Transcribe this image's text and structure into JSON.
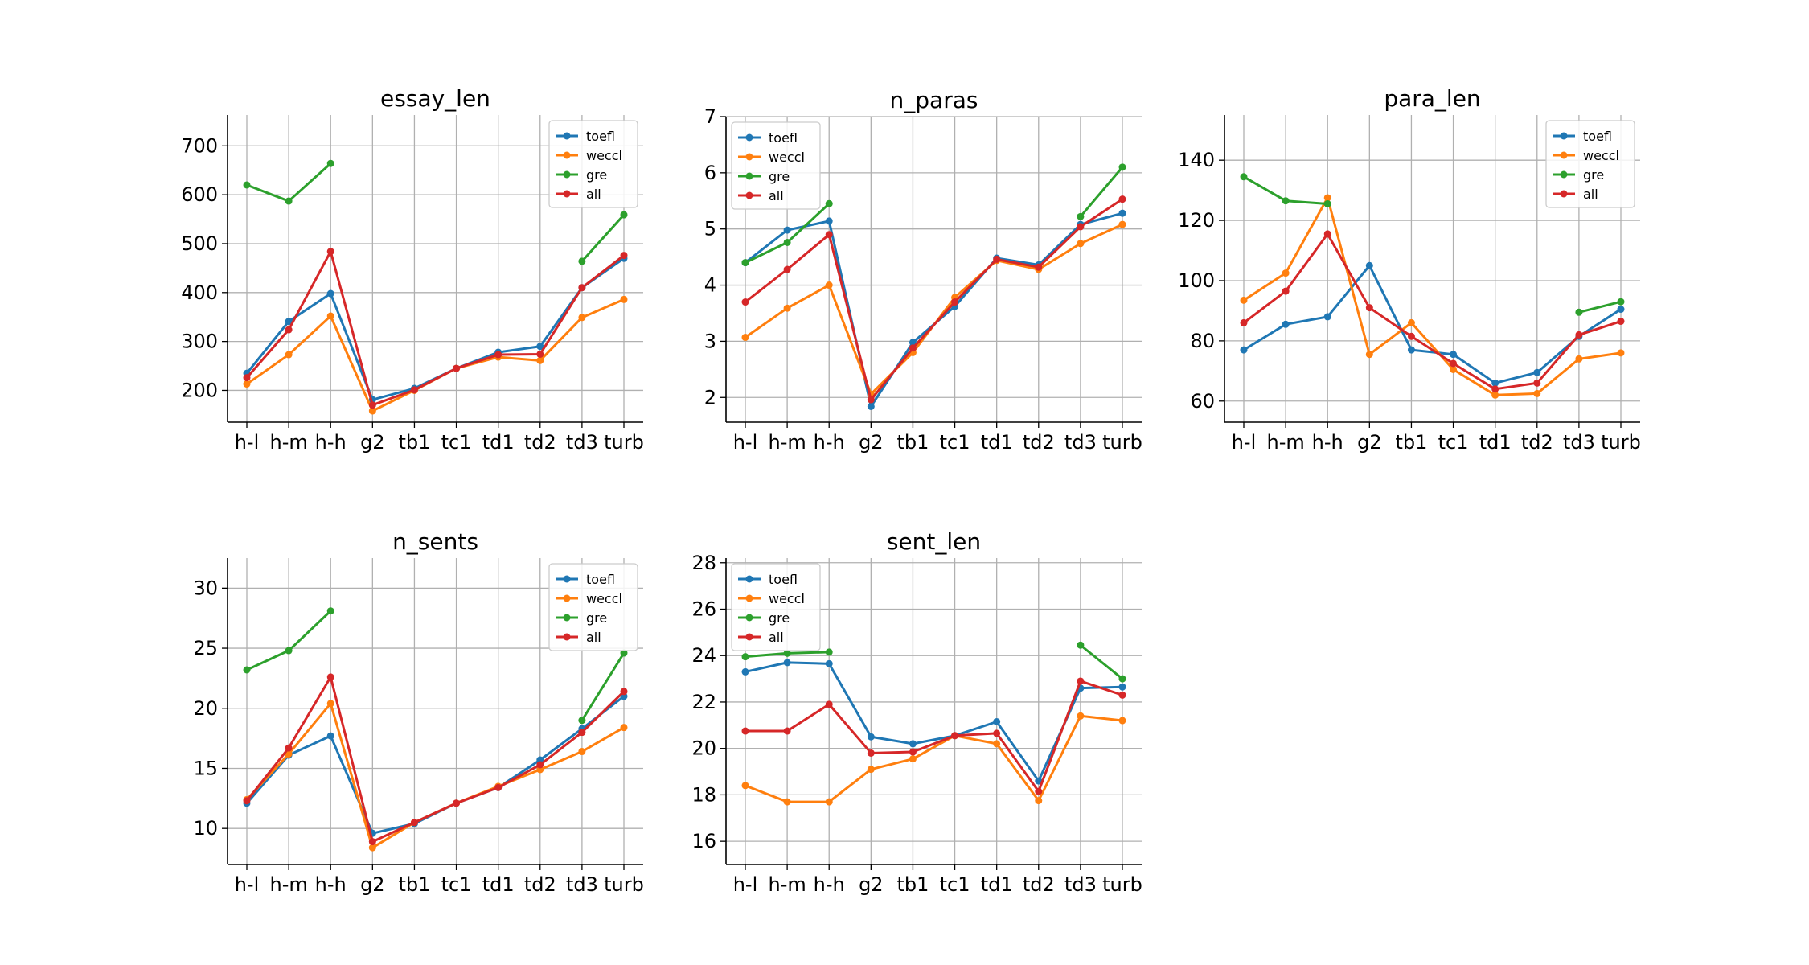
{
  "chart_data": [
    {
      "type": "line",
      "title": "essay_len",
      "categories": [
        "h-l",
        "h-m",
        "h-h",
        "g2",
        "tb1",
        "tc1",
        "td1",
        "td2",
        "td3",
        "turb"
      ],
      "yticks": [
        200,
        300,
        400,
        500,
        600,
        700
      ],
      "ylim": [
        135,
        763
      ],
      "legend": "top-right",
      "grid": true,
      "series": [
        {
          "name": "toefl",
          "color": "#1f77b4",
          "values": [
            235,
            341,
            398,
            181,
            204,
            245,
            278,
            290,
            410,
            470
          ]
        },
        {
          "name": "weccl",
          "color": "#ff7f0e",
          "values": [
            213,
            273,
            352,
            158,
            200,
            245,
            268,
            261,
            349,
            386
          ]
        },
        {
          "name": "gre",
          "color": "#2ca02c",
          "values": [
            620,
            587,
            664,
            null,
            null,
            null,
            null,
            null,
            464,
            559
          ]
        },
        {
          "name": "all",
          "color": "#d62728",
          "values": [
            226,
            324,
            484,
            170,
            201,
            245,
            273,
            274,
            410,
            476
          ]
        }
      ]
    },
    {
      "type": "line",
      "title": "n_paras",
      "categories": [
        "h-l",
        "h-m",
        "h-h",
        "g2",
        "tb1",
        "tc1",
        "td1",
        "td2",
        "td3",
        "turb"
      ],
      "yticks": [
        2,
        3,
        4,
        5,
        6,
        7
      ],
      "ylim": [
        1.56,
        7.0
      ],
      "legend": "top-left",
      "grid": true,
      "series": [
        {
          "name": "toefl",
          "color": "#1f77b4",
          "values": [
            4.4,
            4.98,
            5.14,
            1.84,
            2.98,
            3.62,
            4.48,
            4.36,
            5.08,
            5.28
          ]
        },
        {
          "name": "weccl",
          "color": "#ff7f0e",
          "values": [
            3.07,
            3.59,
            4.0,
            2.06,
            2.8,
            3.78,
            4.44,
            4.28,
            4.74,
            5.08
          ]
        },
        {
          "name": "gre",
          "color": "#2ca02c",
          "values": [
            4.4,
            4.76,
            5.45,
            null,
            null,
            null,
            null,
            null,
            5.22,
            6.1
          ]
        },
        {
          "name": "all",
          "color": "#d62728",
          "values": [
            3.7,
            4.28,
            4.9,
            1.96,
            2.88,
            3.7,
            4.46,
            4.32,
            5.04,
            5.53
          ]
        }
      ]
    },
    {
      "type": "line",
      "title": "para_len",
      "categories": [
        "h-l",
        "h-m",
        "h-h",
        "g2",
        "tb1",
        "tc1",
        "td1",
        "td2",
        "td3",
        "turb"
      ],
      "yticks": [
        60,
        80,
        100,
        120,
        140
      ],
      "ylim": [
        53,
        155
      ],
      "legend": "top-right",
      "grid": true,
      "series": [
        {
          "name": "toefl",
          "color": "#1f77b4",
          "values": [
            77,
            85.5,
            88,
            105,
            77,
            75.5,
            66,
            69.5,
            81.5,
            90.5
          ]
        },
        {
          "name": "weccl",
          "color": "#ff7f0e",
          "values": [
            93.5,
            102.5,
            127.5,
            75.5,
            86,
            70.5,
            62,
            62.5,
            74,
            76
          ]
        },
        {
          "name": "gre",
          "color": "#2ca02c",
          "values": [
            134.5,
            126.5,
            125.5,
            null,
            null,
            null,
            null,
            null,
            89.5,
            93
          ]
        },
        {
          "name": "all",
          "color": "#d62728",
          "values": [
            86,
            96.5,
            115.5,
            91,
            81.5,
            72.5,
            64,
            66,
            82,
            86.5
          ]
        }
      ]
    },
    {
      "type": "line",
      "title": "n_sents",
      "categories": [
        "h-l",
        "h-m",
        "h-h",
        "g2",
        "tb1",
        "tc1",
        "td1",
        "td2",
        "td3",
        "turb"
      ],
      "yticks": [
        10,
        15,
        20,
        25,
        30
      ],
      "ylim": [
        7.0,
        32.5
      ],
      "legend": "top-right",
      "grid": true,
      "series": [
        {
          "name": "toefl",
          "color": "#1f77b4",
          "values": [
            12.1,
            16.1,
            17.7,
            9.6,
            10.4,
            12.1,
            13.4,
            15.7,
            18.3,
            21.0
          ]
        },
        {
          "name": "weccl",
          "color": "#ff7f0e",
          "values": [
            12.4,
            16.2,
            20.4,
            8.4,
            10.5,
            12.1,
            13.5,
            14.9,
            16.4,
            18.4
          ]
        },
        {
          "name": "gre",
          "color": "#2ca02c",
          "values": [
            23.2,
            24.8,
            28.1,
            null,
            null,
            null,
            null,
            null,
            19.0,
            24.6
          ]
        },
        {
          "name": "all",
          "color": "#d62728",
          "values": [
            12.3,
            16.7,
            22.6,
            8.9,
            10.5,
            12.1,
            13.4,
            15.3,
            18.0,
            21.4
          ]
        }
      ]
    },
    {
      "type": "line",
      "title": "sent_len",
      "categories": [
        "h-l",
        "h-m",
        "h-h",
        "g2",
        "tb1",
        "tc1",
        "td1",
        "td2",
        "td3",
        "turb"
      ],
      "yticks": [
        16,
        18,
        20,
        22,
        24,
        26,
        28
      ],
      "ylim": [
        15.0,
        28.2
      ],
      "legend": "top-left",
      "grid": true,
      "series": [
        {
          "name": "toefl",
          "color": "#1f77b4",
          "values": [
            23.3,
            23.7,
            23.65,
            20.5,
            20.2,
            20.55,
            21.15,
            18.6,
            22.6,
            22.65
          ]
        },
        {
          "name": "weccl",
          "color": "#ff7f0e",
          "values": [
            18.4,
            17.7,
            17.7,
            19.1,
            19.55,
            20.55,
            20.2,
            17.75,
            21.4,
            21.2
          ]
        },
        {
          "name": "gre",
          "color": "#2ca02c",
          "values": [
            23.95,
            24.1,
            24.15,
            null,
            null,
            null,
            null,
            null,
            24.45,
            23.0
          ]
        },
        {
          "name": "all",
          "color": "#d62728",
          "values": [
            20.75,
            20.75,
            21.9,
            19.8,
            19.85,
            20.55,
            20.65,
            18.15,
            22.9,
            22.3
          ]
        }
      ]
    }
  ]
}
